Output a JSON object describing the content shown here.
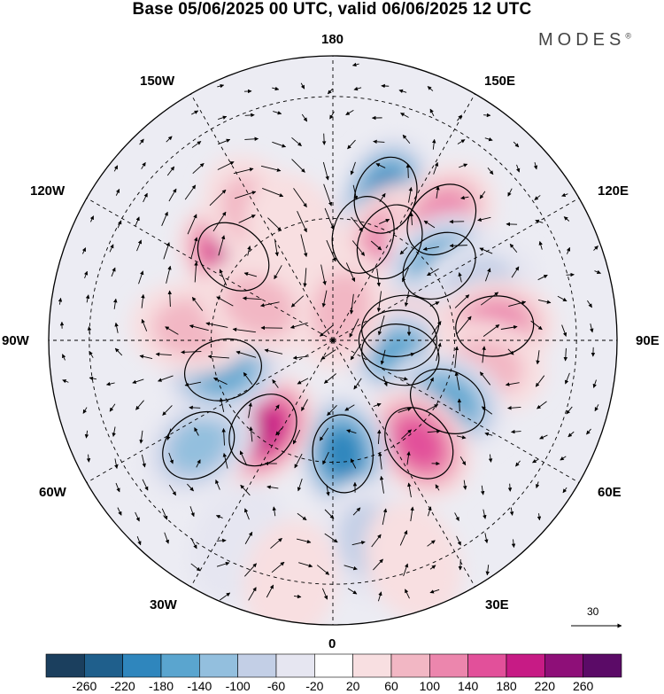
{
  "title": "Base 05/06/2025 00 UTC, valid 06/06/2025 12 UTC",
  "brand": {
    "name": "MODES",
    "mark": "®"
  },
  "lon_labels": {
    "n180": "180",
    "w150": "150W",
    "e150": "150E",
    "w120": "120W",
    "e120": "120E",
    "w90": "90W",
    "e90": "90E",
    "w60": "60W",
    "e60": "60E",
    "w30": "30W",
    "e30": "30E",
    "s0": "0"
  },
  "reference_vector": {
    "value": "30"
  },
  "colorbar": {
    "ticks": [
      "-260",
      "-220",
      "-180",
      "-140",
      "-100",
      "-60",
      "-20",
      "20",
      "60",
      "100",
      "140",
      "180",
      "220",
      "260"
    ],
    "colors": [
      "#1b3f5e",
      "#1f5f8c",
      "#2f86bd",
      "#5aa5cf",
      "#93bfde",
      "#c3cfe6",
      "#e6e6f1",
      "#ffffff",
      "#f8dfe1",
      "#f2b7c4",
      "#ec86ad",
      "#e2509a",
      "#c71b85",
      "#8e0f78",
      "#5b0b67"
    ]
  },
  "anomalies": [
    {
      "lon": 164,
      "lat": 63,
      "value": -280
    },
    {
      "lon": 160,
      "lat": 52,
      "value": -200
    },
    {
      "lon": -130,
      "lat": 58,
      "value": 200
    },
    {
      "lon": -148,
      "lat": 53,
      "value": 90
    },
    {
      "lon": -160,
      "lat": 62,
      "value": 40
    },
    {
      "lon": 150,
      "lat": 62,
      "value": 120
    },
    {
      "lon": 138,
      "lat": 50,
      "value": 140
    },
    {
      "lon": 125,
      "lat": 58,
      "value": -150
    },
    {
      "lon": 110,
      "lat": 52,
      "value": -80
    },
    {
      "lon": 102,
      "lat": 73,
      "value": -150
    },
    {
      "lon": 90,
      "lat": 74,
      "value": 170
    },
    {
      "lon": 78,
      "lat": 73,
      "value": -160
    },
    {
      "lon": 95,
      "lat": 50,
      "value": 120
    },
    {
      "lon": 80,
      "lat": 52,
      "value": 90
    },
    {
      "lon": 62,
      "lat": 58,
      "value": -170
    },
    {
      "lon": 40,
      "lat": 57,
      "value": 160
    },
    {
      "lon": 5,
      "lat": 62,
      "value": -200
    },
    {
      "lon": -38,
      "lat": 62,
      "value": 220
    },
    {
      "lon": -52,
      "lat": 48,
      "value": -120
    },
    {
      "lon": -75,
      "lat": 62,
      "value": -160
    },
    {
      "lon": -95,
      "lat": 55,
      "value": 70
    },
    {
      "lon": -115,
      "lat": 70,
      "value": 80
    },
    {
      "lon": 165,
      "lat": 82,
      "value": 80
    },
    {
      "lon": 10,
      "lat": 40,
      "value": -90
    },
    {
      "lon": 20,
      "lat": 32,
      "value": 60
    },
    {
      "lon": -25,
      "lat": 35,
      "value": -50
    },
    {
      "lon": -10,
      "lat": 30,
      "value": 40
    }
  ]
}
